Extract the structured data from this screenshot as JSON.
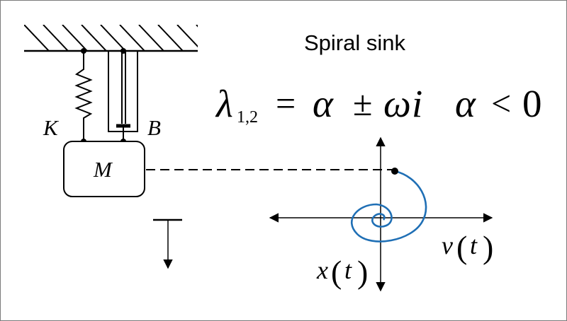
{
  "title": "Spiral sink",
  "equation": {
    "lambda": "λ",
    "subscript": "1,2",
    "equals": "=",
    "alpha": "α",
    "pm": "±",
    "omega": "ω",
    "i": "i",
    "alpha2": "α",
    "lt": "<",
    "zero": "0"
  },
  "labels": {
    "spring": "K",
    "damper": "B",
    "mass": "M",
    "x_axis_var": "v",
    "y_axis_var": "x",
    "param": "t",
    "lparen": "(",
    "rparen": ")"
  },
  "colors": {
    "spiral": "#1f6fb5",
    "ink": "#000000"
  }
}
